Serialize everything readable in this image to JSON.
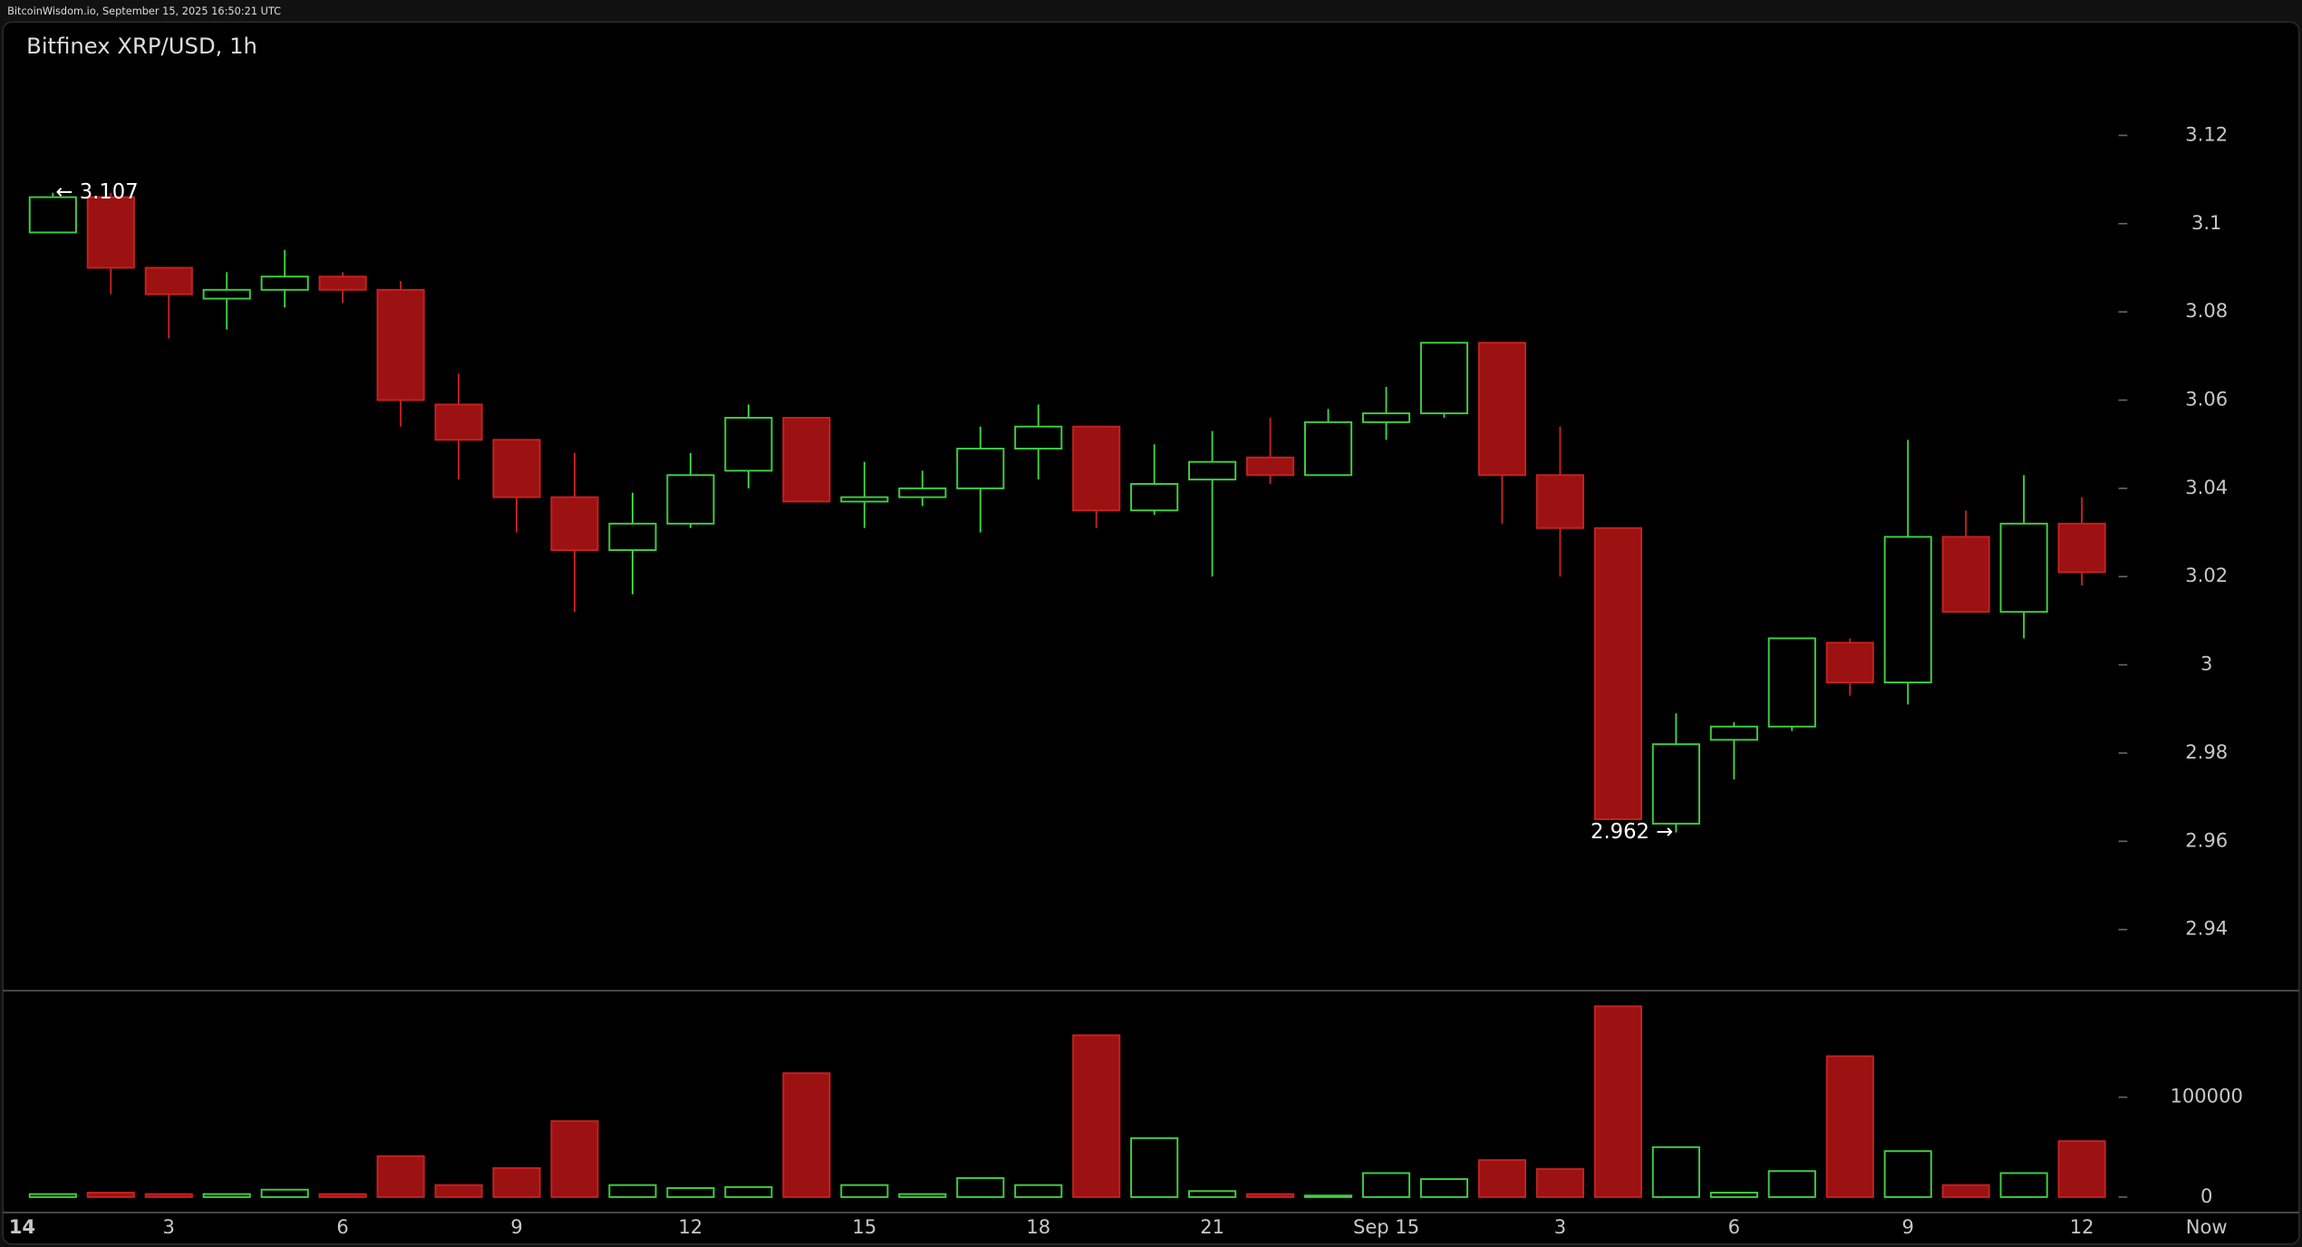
{
  "chart_data": {
    "type": "candlestick",
    "header": "BitcoinWisdom.io, September 15, 2025 16:50:21 UTC",
    "title": "Bitfinex XRP/USD, 1h",
    "x_start_label": "14",
    "x_end_label": "Now",
    "categories": [
      null,
      null,
      "3",
      null,
      null,
      "6",
      null,
      null,
      "9",
      null,
      null,
      "12",
      null,
      null,
      "15",
      null,
      null,
      "18",
      null,
      null,
      "21",
      null,
      null,
      "Sep 15",
      null,
      null,
      "3",
      null,
      null,
      "6",
      null,
      null,
      "9",
      null,
      null,
      "12"
    ],
    "open": [
      3.098,
      3.106,
      3.09,
      3.083,
      3.085,
      3.088,
      3.085,
      3.059,
      3.051,
      3.038,
      3.026,
      3.032,
      3.044,
      3.056,
      3.037,
      3.038,
      3.04,
      3.049,
      3.054,
      3.035,
      3.042,
      3.047,
      3.043,
      3.055,
      3.057,
      3.073,
      3.043,
      3.031,
      2.964,
      2.983,
      2.986,
      3.005,
      2.996,
      3.029,
      3.012,
      3.032
    ],
    "high": [
      3.107,
      3.107,
      3.09,
      3.089,
      3.094,
      3.089,
      3.087,
      3.066,
      3.051,
      3.048,
      3.039,
      3.048,
      3.059,
      3.056,
      3.046,
      3.044,
      3.054,
      3.059,
      3.054,
      3.05,
      3.053,
      3.056,
      3.058,
      3.063,
      3.073,
      3.073,
      3.054,
      3.031,
      2.989,
      2.987,
      3.006,
      3.006,
      3.051,
      3.035,
      3.043,
      3.038
    ],
    "low": [
      3.098,
      3.084,
      3.074,
      3.076,
      3.081,
      3.082,
      3.054,
      3.042,
      3.03,
      3.012,
      3.016,
      3.031,
      3.04,
      3.037,
      3.031,
      3.036,
      3.03,
      3.042,
      3.031,
      3.034,
      3.02,
      3.041,
      3.043,
      3.051,
      3.056,
      3.032,
      3.02,
      2.965,
      2.962,
      2.974,
      2.985,
      2.993,
      2.991,
      3.012,
      3.006,
      3.018
    ],
    "close": [
      3.106,
      3.09,
      3.084,
      3.085,
      3.088,
      3.085,
      3.06,
      3.051,
      3.038,
      3.026,
      3.032,
      3.043,
      3.056,
      3.037,
      3.038,
      3.04,
      3.049,
      3.054,
      3.035,
      3.041,
      3.046,
      3.043,
      3.055,
      3.057,
      3.073,
      3.043,
      3.031,
      2.965,
      2.982,
      2.986,
      3.006,
      2.996,
      3.029,
      3.012,
      3.032,
      3.021
    ],
    "volume": [
      3000,
      4400,
      3000,
      3000,
      7400,
      3000,
      41000,
      12000,
      29000,
      76000,
      12000,
      9000,
      10000,
      124000,
      12000,
      3000,
      19000,
      12000,
      162000,
      59000,
      6000,
      3000,
      1500,
      24000,
      18000,
      37000,
      28000,
      191000,
      50000,
      4400,
      26000,
      141000,
      46000,
      12000,
      24000,
      56000
    ],
    "high_label": {
      "value": 3.107,
      "label": "← 3.107"
    },
    "low_label": {
      "value": 2.962,
      "label": "2.962 →"
    },
    "ylim": [
      2.9263,
      3.1457
    ],
    "yticks": [
      2.94,
      2.96,
      2.98,
      3,
      3.02,
      3.04,
      3.06,
      3.08,
      3.1,
      3.12
    ],
    "volume_ylim": [
      -14706,
      205882
    ],
    "volume_yticks": [
      0,
      100000
    ],
    "up_color": "#3fcf3f",
    "down_color": "#9c1111",
    "down_border": "#c42222"
  }
}
